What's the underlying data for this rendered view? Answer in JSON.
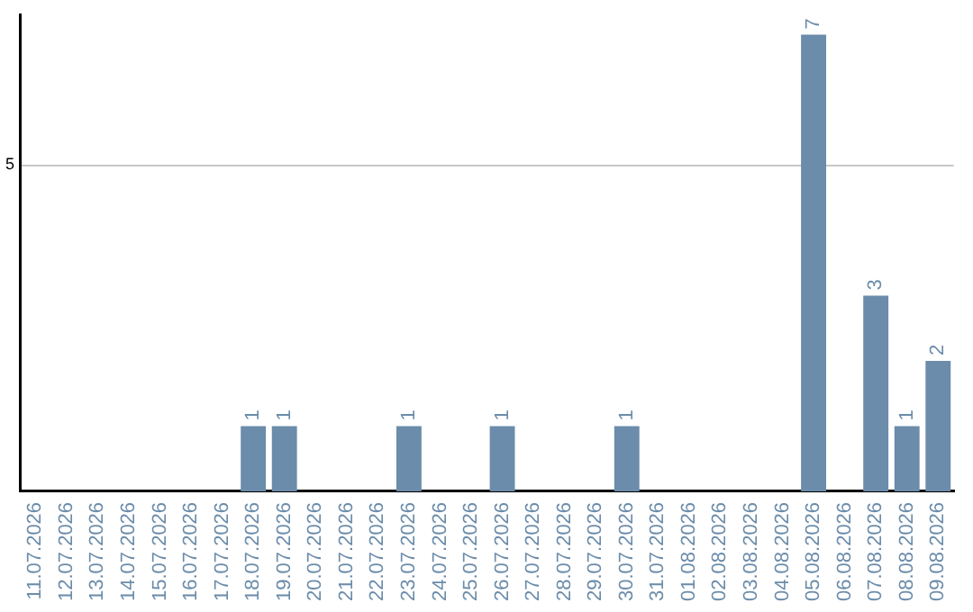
{
  "chart_data": {
    "type": "bar",
    "categories": [
      "11.07.2026",
      "12.07.2026",
      "13.07.2026",
      "14.07.2026",
      "15.07.2026",
      "16.07.2026",
      "17.07.2026",
      "18.07.2026",
      "19.07.2026",
      "20.07.2026",
      "21.07.2026",
      "22.07.2026",
      "23.07.2026",
      "24.07.2026",
      "25.07.2026",
      "26.07.2026",
      "27.07.2026",
      "28.07.2026",
      "29.07.2026",
      "30.07.2026",
      "31.07.2026",
      "01.08.2026",
      "02.08.2026",
      "03.08.2026",
      "04.08.2026",
      "05.08.2026",
      "06.08.2026",
      "07.08.2026",
      "08.08.2026",
      "09.08.2026"
    ],
    "values": [
      0,
      0,
      0,
      0,
      0,
      0,
      0,
      1,
      1,
      0,
      0,
      0,
      1,
      0,
      0,
      1,
      0,
      0,
      0,
      1,
      0,
      0,
      0,
      0,
      0,
      7,
      0,
      3,
      1,
      2
    ],
    "value_labels": [
      null,
      null,
      null,
      null,
      null,
      null,
      null,
      "1",
      "1",
      null,
      null,
      null,
      "1",
      null,
      null,
      "1",
      null,
      null,
      null,
      "1",
      null,
      null,
      null,
      null,
      null,
      "7",
      null,
      "3",
      "1",
      "2"
    ],
    "color": "#6b8caa",
    "ylim": [
      0,
      7.3
    ],
    "yticks": [
      5
    ],
    "grid": "y",
    "legend": false
  }
}
